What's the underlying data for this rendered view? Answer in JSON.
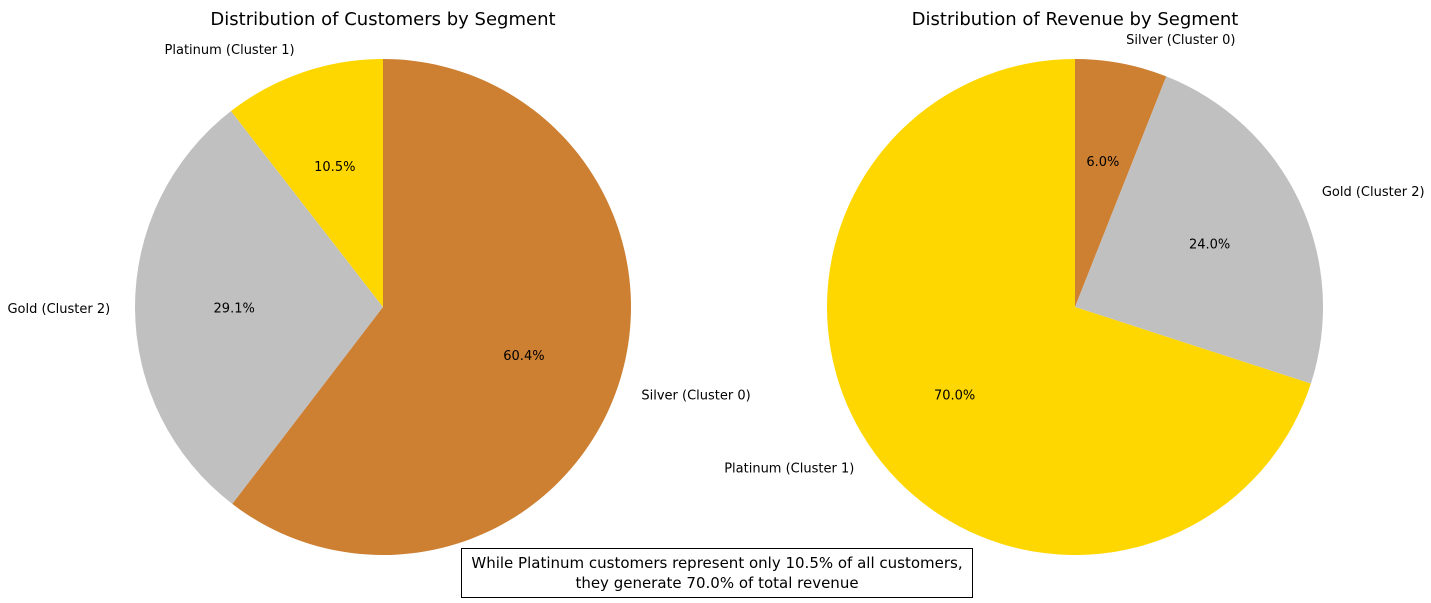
{
  "chart_data": [
    {
      "type": "pie",
      "title": "Distribution of Customers by Segment",
      "slices": [
        {
          "label": "Silver (Cluster 0)",
          "value": 60.4,
          "pct_label": "60.4%",
          "color": "#CD7F32"
        },
        {
          "label": "Gold (Cluster 2)",
          "value": 29.1,
          "pct_label": "29.1%",
          "color": "#C0C0C0"
        },
        {
          "label": "Platinum (Cluster 1)",
          "value": 10.5,
          "pct_label": "10.5%",
          "color": "#FFD700"
        }
      ]
    },
    {
      "type": "pie",
      "title": "Distribution of Revenue by Segment",
      "slices": [
        {
          "label": "Silver (Cluster 0)",
          "value": 6.0,
          "pct_label": "6.0%",
          "color": "#CD7F32"
        },
        {
          "label": "Gold (Cluster 2)",
          "value": 24.0,
          "pct_label": "24.0%",
          "color": "#C0C0C0"
        },
        {
          "label": "Platinum (Cluster 1)",
          "value": 70.0,
          "pct_label": "70.0%",
          "color": "#FFD700"
        }
      ]
    }
  ],
  "annotation": {
    "line1": "While Platinum customers represent only 10.5% of all customers,",
    "line2": "they generate 70.0% of total revenue"
  }
}
